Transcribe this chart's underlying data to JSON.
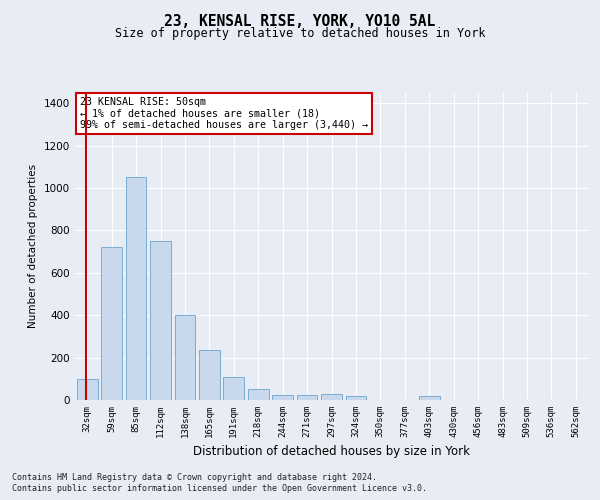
{
  "title1": "23, KENSAL RISE, YORK, YO10 5AL",
  "title2": "Size of property relative to detached houses in York",
  "xlabel": "Distribution of detached houses by size in York",
  "ylabel": "Number of detached properties",
  "bar_labels": [
    "32sqm",
    "59sqm",
    "85sqm",
    "112sqm",
    "138sqm",
    "165sqm",
    "191sqm",
    "218sqm",
    "244sqm",
    "271sqm",
    "297sqm",
    "324sqm",
    "350sqm",
    "377sqm",
    "403sqm",
    "430sqm",
    "456sqm",
    "483sqm",
    "509sqm",
    "536sqm",
    "562sqm"
  ],
  "bar_values": [
    100,
    720,
    1050,
    750,
    400,
    235,
    110,
    50,
    25,
    25,
    30,
    20,
    0,
    0,
    20,
    0,
    0,
    0,
    0,
    0,
    0
  ],
  "bar_color": "#c8d9ee",
  "bar_edge_color": "#7aadd4",
  "marker_color": "#cc0000",
  "annotation_text": "23 KENSAL RISE: 50sqm\n← 1% of detached houses are smaller (18)\n99% of semi-detached houses are larger (3,440) →",
  "annotation_box_color": "#ffffff",
  "annotation_box_edge": "#cc0000",
  "ylim": [
    0,
    1450
  ],
  "yticks": [
    0,
    200,
    400,
    600,
    800,
    1000,
    1200,
    1400
  ],
  "footer1": "Contains HM Land Registry data © Crown copyright and database right 2024.",
  "footer2": "Contains public sector information licensed under the Open Government Licence v3.0.",
  "bg_color": "#e8edf5",
  "plot_bg_color": "#e8edf5"
}
